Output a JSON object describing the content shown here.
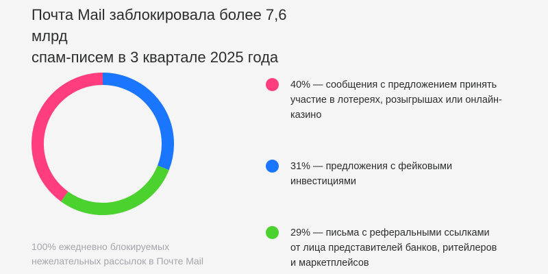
{
  "title_lines": [
    "Почта Mail заблокировала более 7,6 млрд",
    "спам-писем в 3 квартале 2025 года"
  ],
  "caption_lines": [
    "100% ежедневно блокируемых",
    "нежелательных рассылок в Почте Mail"
  ],
  "chart_data": {
    "type": "pie",
    "style": "donut",
    "start": "top",
    "direction": "clockwise",
    "slice_order": [
      "31%",
      "29%",
      "40%"
    ],
    "slices": [
      {
        "value": 40,
        "color": "#ff3d7f"
      },
      {
        "value": 31,
        "color": "#1a75ff"
      },
      {
        "value": 29,
        "color": "#4bd22e"
      }
    ],
    "legend": [
      {
        "color": "#ff3d7f",
        "lines": [
          "40% — сообщения с предложением принять",
          "участие в лотереях, розыгрышах или онлайн-",
          "казино"
        ]
      },
      {
        "color": "#1a75ff",
        "lines": [
          "31% — предложения с фейковыми",
          "инвестициями"
        ]
      },
      {
        "color": "#4bd22e",
        "lines": [
          "29% — письма с реферальными ссылками",
          "от лица представителей банков, ритейлеров",
          "и маркетплейсов"
        ]
      }
    ]
  }
}
